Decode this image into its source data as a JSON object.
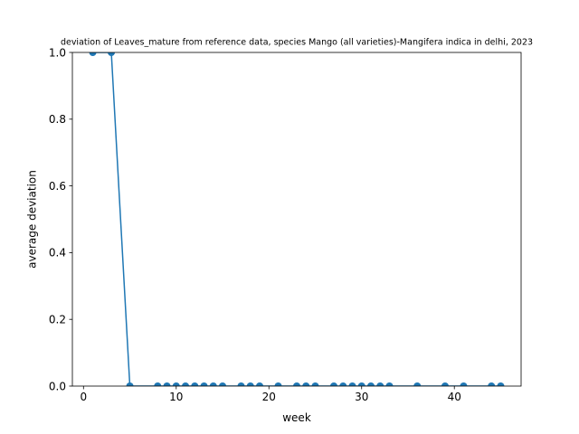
{
  "chart_data": {
    "type": "line",
    "title": "deviation of Leaves_mature from reference data, species Mango (all varieties)-Mangifera indica in delhi, 2023",
    "xlabel": "week",
    "ylabel": "average deviation",
    "xlim": [
      -1.2,
      47.2
    ],
    "ylim": [
      0.0,
      1.0
    ],
    "x_ticks": [
      0,
      10,
      20,
      30,
      40
    ],
    "y_ticks": [
      0.0,
      0.2,
      0.4,
      0.6,
      0.8,
      1.0
    ],
    "x_tick_labels": [
      "0",
      "10",
      "20",
      "30",
      "40"
    ],
    "y_tick_labels": [
      "0.0",
      "0.2",
      "0.4",
      "0.6",
      "0.8",
      "1.0"
    ],
    "grid": false,
    "series": [
      {
        "color": "#1f77b4",
        "x": [
          1,
          3,
          5,
          8,
          9,
          10,
          11,
          12,
          13,
          14,
          15,
          17,
          18,
          19,
          21,
          23,
          24,
          25,
          27,
          28,
          29,
          30,
          31,
          32,
          33,
          36,
          39,
          41,
          44,
          45
        ],
        "y": [
          1,
          1,
          0,
          0,
          0,
          0,
          0,
          0,
          0,
          0,
          0,
          0,
          0,
          0,
          0,
          0,
          0,
          0,
          0,
          0,
          0,
          0,
          0,
          0,
          0,
          0,
          0,
          0,
          0,
          0
        ]
      }
    ]
  }
}
